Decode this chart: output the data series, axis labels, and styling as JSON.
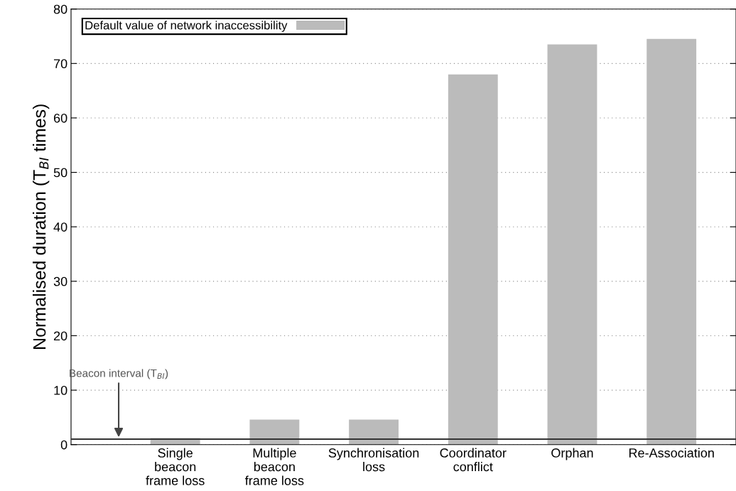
{
  "chart_data": {
    "type": "bar",
    "categories": [
      "Single\nbeacon\nframe loss",
      "Multiple\nbeacon\nframe loss",
      "Synchronisation\nloss",
      "Coordinator\nconflict",
      "Orphan",
      "Re-Association"
    ],
    "series": [
      {
        "name": "Default value of network inaccessibility",
        "color": "#bbbbbb",
        "values": [
          1.2,
          4.6,
          4.6,
          68.0,
          73.5,
          74.5
        ]
      }
    ],
    "ylabel": "Normalised duration (T$_{BI}$ times)",
    "ylim": [
      0,
      80
    ],
    "yticks": [
      0,
      10,
      20,
      30,
      40,
      50,
      60,
      70,
      80
    ],
    "ref_lines": [
      {
        "axis": "y",
        "value": 1,
        "label": "Beacon interval (T$_{BI}$)",
        "color": "#333333",
        "line_style": "solid"
      }
    ],
    "grid": "y",
    "legend": "top left"
  }
}
